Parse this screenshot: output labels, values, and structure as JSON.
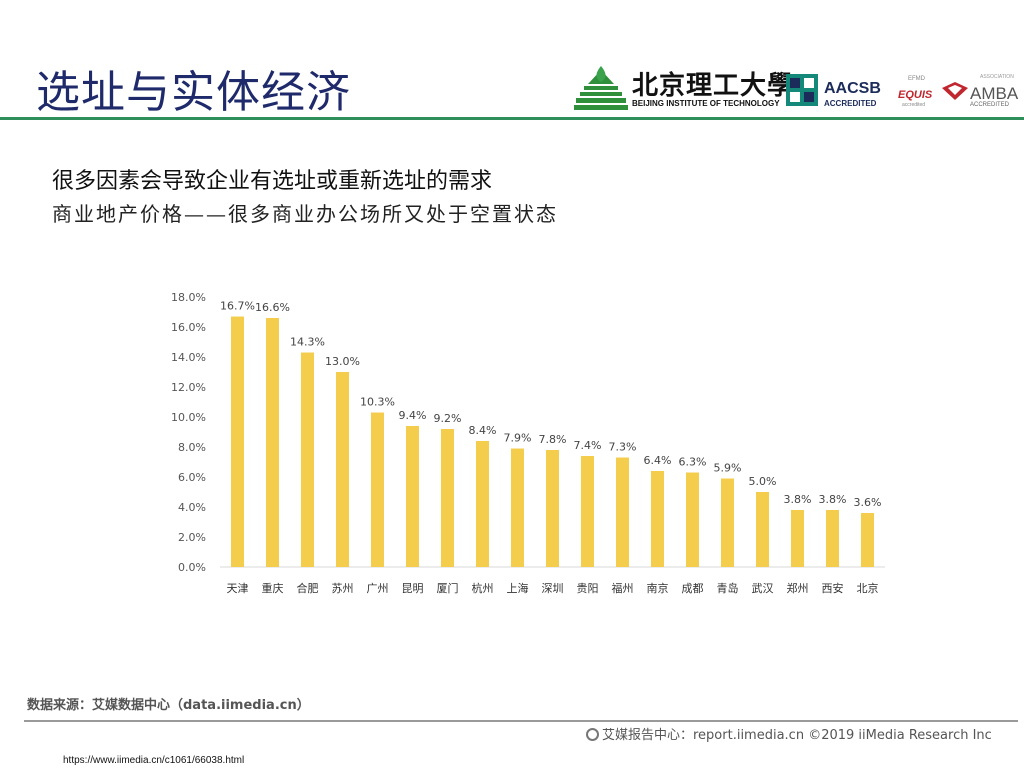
{
  "title": "选址与实体经济",
  "logos": {
    "bit_cn": "北京理工大學",
    "bit_en": "BEIJING INSTITUTE OF TECHNOLOGY",
    "aacsb": "AACSB",
    "aacsb_sub": "ACCREDITED",
    "efmd": "EFMD",
    "equis": "EQUIS",
    "equis_sub": "accredited",
    "amba_top": "ASSOCIATION",
    "amba": "AMBA",
    "amba_sub": "ACCREDITED"
  },
  "subtitle": "很多因素会导致企业有选址或重新选址的需求",
  "subtitle2": "商业地产价格——很多商业办公场所又处于空置状态",
  "chart_data": {
    "type": "bar",
    "categories": [
      "天津",
      "重庆",
      "合肥",
      "苏州",
      "广州",
      "昆明",
      "厦门",
      "杭州",
      "上海",
      "深圳",
      "贵阳",
      "福州",
      "南京",
      "成都",
      "青岛",
      "武汉",
      "郑州",
      "西安",
      "北京"
    ],
    "values": [
      16.7,
      16.6,
      14.3,
      13.0,
      10.3,
      9.4,
      9.2,
      8.4,
      7.9,
      7.8,
      7.4,
      7.3,
      6.4,
      6.3,
      5.9,
      5.0,
      3.8,
      3.8,
      3.6
    ],
    "data_labels": [
      "16.7%",
      "16.6%",
      "14.3%",
      "13.0%",
      "10.3%",
      "9.4%",
      "9.2%",
      "8.4%",
      "7.9%",
      "7.8%",
      "7.4%",
      "7.3%",
      "6.4%",
      "6.3%",
      "5.9%",
      "5.0%",
      "3.8%",
      "3.8%",
      "3.6%"
    ],
    "yticks": [
      "0.0%",
      "2.0%",
      "4.0%",
      "6.0%",
      "8.0%",
      "10.0%",
      "12.0%",
      "14.0%",
      "16.0%",
      "18.0%"
    ],
    "ylim": [
      0,
      18
    ],
    "title": "",
    "xlabel": "",
    "ylabel": "",
    "grid": false,
    "bar_color": "#f5cd4c"
  },
  "source": "数据来源：艾媒数据中心（data.iimedia.cn）",
  "footer": "艾媒报告中心：report.iimedia.cn    ©2019  iiMedia Research  Inc",
  "url": "https://www.iimedia.cn/c1061/66038.html",
  "colors": {
    "title": "#1f2a6b",
    "rule": "#2f8f5a",
    "bar": "#f5cd4c"
  }
}
